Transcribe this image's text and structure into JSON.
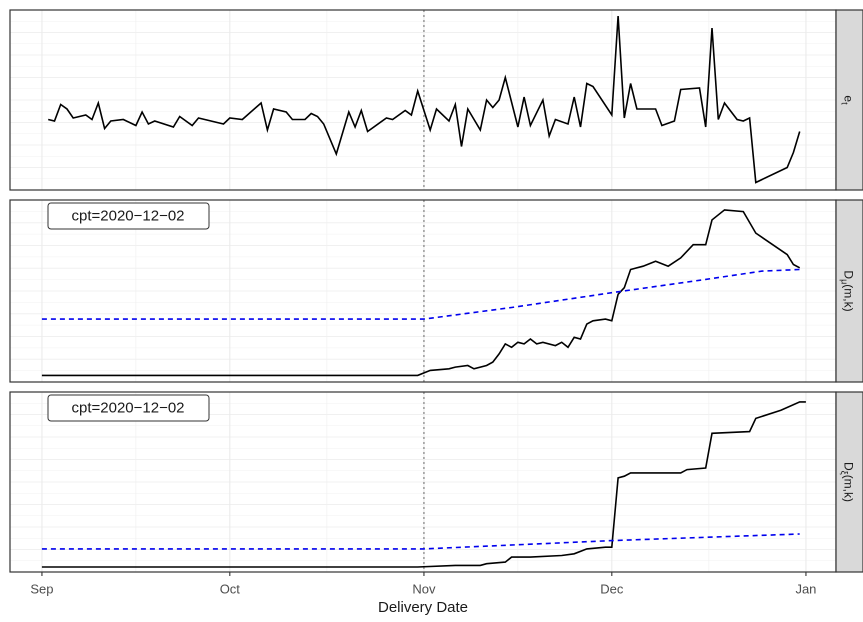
{
  "chart_data": {
    "type": "line",
    "x_label": "Delivery Date",
    "xlim": [
      -5.1,
      126.8
    ],
    "xticks": [
      {
        "value": 0,
        "label": "Sep"
      },
      {
        "value": 30,
        "label": "Oct"
      },
      {
        "value": 61,
        "label": "Nov"
      },
      {
        "value": 91,
        "label": "Dec"
      },
      {
        "value": 122,
        "label": "Jan"
      }
    ],
    "vline": 61,
    "grid": true,
    "panels": [
      {
        "strip": "e",
        "strip_sub": "t",
        "strip_rest": "",
        "ylim": [
          -4.7,
          7.3
        ],
        "series": [
          {
            "color": "#000000",
            "dash": false,
            "x": [
              1,
              2,
              3,
              4,
              5,
              7,
              8,
              9,
              10,
              11,
              13,
              15,
              16,
              17,
              18,
              21,
              22,
              24,
              25,
              29,
              30,
              32,
              35,
              36,
              37,
              39,
              40,
              42,
              43,
              44,
              45,
              47,
              49,
              50,
              51,
              52,
              55,
              56,
              58,
              59,
              60,
              62,
              63,
              65,
              66,
              67,
              68,
              70,
              71,
              72,
              73,
              74,
              76,
              77,
              78,
              80,
              81,
              82,
              84,
              85,
              86,
              87,
              88,
              91,
              92,
              93,
              94,
              95,
              98,
              99,
              101,
              102,
              105,
              106,
              107,
              108,
              109,
              111,
              112,
              113,
              114,
              119,
              120,
              121
            ],
            "values": [
              0,
              -0.1,
              1.0,
              0.7,
              0.1,
              0.3,
              0,
              1.1,
              -0.6,
              -0.1,
              0,
              -0.4,
              0.5,
              -0.3,
              -0.1,
              -0.5,
              0.2,
              -0.4,
              0.1,
              -0.3,
              0.1,
              0,
              1.1,
              -0.7,
              0.7,
              0.5,
              0,
              0,
              0.4,
              0.2,
              -0.3,
              -2.3,
              0.5,
              -0.5,
              0.6,
              -0.8,
              0.1,
              0,
              0.6,
              0.3,
              1.9,
              -0.7,
              0.7,
              -0.1,
              1.0,
              -1.8,
              0.7,
              -0.7,
              1.3,
              0.8,
              1.3,
              2.8,
              -0.5,
              1.5,
              -0.4,
              1.3,
              -1.1,
              0,
              -0.3,
              1.5,
              -0.5,
              2.4,
              2.2,
              0.3,
              6.9,
              0.1,
              2.4,
              0.7,
              0.7,
              -0.4,
              -0.1,
              2.0,
              2.1,
              -0.5,
              6.1,
              0,
              1.1,
              0,
              -0.1,
              0.1,
              -4.2,
              -3.2,
              -2.2,
              -0.8
            ]
          }
        ]
      },
      {
        "strip": "D",
        "strip_sub": "μ",
        "strip_rest": "(m,k)",
        "ylim": [
          -0.04,
          1.06
        ],
        "annotation": "cpt=2020−12−02",
        "series": [
          {
            "color": "#000000",
            "dash": false,
            "x": [
              0,
              60,
              62,
              65,
              66,
              68,
              69,
              71,
              72,
              73,
              74,
              75,
              76,
              77,
              78,
              79,
              80,
              82,
              83,
              84,
              85,
              86,
              87,
              88,
              90,
              91,
              92,
              93,
              94,
              96,
              98,
              100,
              102,
              104,
              106,
              107,
              109,
              112,
              114,
              119,
              120,
              121
            ],
            "values": [
              0,
              0,
              0.03,
              0.04,
              0.05,
              0.06,
              0.04,
              0.06,
              0.08,
              0.13,
              0.19,
              0.17,
              0.2,
              0.19,
              0.22,
              0.19,
              0.2,
              0.18,
              0.2,
              0.17,
              0.23,
              0.22,
              0.31,
              0.33,
              0.34,
              0.33,
              0.49,
              0.53,
              0.64,
              0.66,
              0.69,
              0.66,
              0.71,
              0.79,
              0.79,
              0.94,
              1.0,
              0.99,
              0.86,
              0.73,
              0.67,
              0.65
            ]
          },
          {
            "color": "#0000ee",
            "dash": true,
            "x": [
              0,
              61,
              75,
              91,
              106,
              115,
              121
            ],
            "values": [
              0.34,
              0.34,
              0.41,
              0.5,
              0.58,
              0.63,
              0.64
            ]
          }
        ]
      },
      {
        "strip": "D",
        "strip_sub": "ξ",
        "strip_rest": "(m,k)",
        "ylim": [
          -0.03,
          1.06
        ],
        "annotation": "cpt=2020−12−02",
        "series": [
          {
            "color": "#000000",
            "dash": false,
            "x": [
              0,
              60,
              66,
              70,
              71,
              74,
              75,
              78,
              83,
              85,
              87,
              90,
              91,
              92,
              93,
              94,
              96,
              102,
              103,
              106,
              107,
              113,
              114,
              118,
              121,
              122
            ],
            "values": [
              0,
              0,
              0.01,
              0.01,
              0.02,
              0.03,
              0.06,
              0.06,
              0.07,
              0.08,
              0.11,
              0.12,
              0.12,
              0.54,
              0.55,
              0.57,
              0.57,
              0.57,
              0.59,
              0.6,
              0.81,
              0.82,
              0.9,
              0.95,
              1.0,
              1.0
            ]
          },
          {
            "color": "#0000ee",
            "dash": true,
            "x": [
              0,
              61,
              91,
              121
            ],
            "values": [
              0.11,
              0.11,
              0.16,
              0.2
            ]
          }
        ]
      }
    ]
  }
}
